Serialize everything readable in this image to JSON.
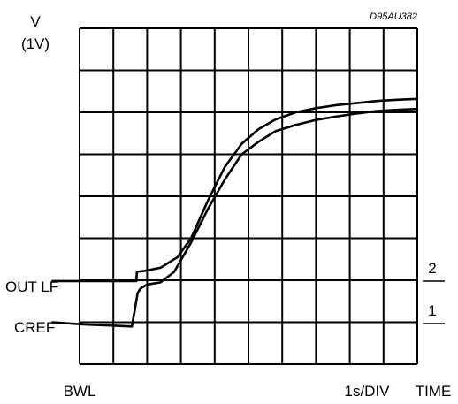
{
  "chart_data": {
    "type": "line",
    "figure_code": "D95AU382",
    "y_axis": {
      "label_line1": "V",
      "label_line2": "(1V)",
      "divisions": 8
    },
    "x_axis": {
      "left_label": "BWL",
      "scale_label": "1s/DIV",
      "label": "TIME",
      "divisions": 10
    },
    "grid": true,
    "left_labels": {
      "out_lf": "OUT LF",
      "cref": "CREF"
    },
    "series": [
      {
        "name": "2",
        "points": [
          [
            -0.8,
            1.98
          ],
          [
            0.1,
            1.98
          ],
          [
            1.68,
            1.98
          ],
          [
            1.7,
            2.2
          ],
          [
            1.9,
            2.22
          ],
          [
            2.4,
            2.3
          ],
          [
            2.9,
            2.55
          ],
          [
            3.3,
            3.0
          ],
          [
            3.8,
            3.9
          ],
          [
            4.3,
            4.7
          ],
          [
            4.8,
            5.25
          ],
          [
            5.3,
            5.6
          ],
          [
            5.8,
            5.83
          ],
          [
            6.4,
            6.0
          ],
          [
            7.0,
            6.1
          ],
          [
            7.6,
            6.17
          ],
          [
            8.2,
            6.22
          ],
          [
            8.8,
            6.27
          ],
          [
            9.4,
            6.3
          ],
          [
            10.0,
            6.32
          ]
        ]
      },
      {
        "name": "1",
        "points": [
          [
            -0.8,
            1.0
          ],
          [
            0.1,
            0.95
          ],
          [
            1.55,
            0.9
          ],
          [
            1.72,
            1.7
          ],
          [
            1.8,
            1.8
          ],
          [
            2.0,
            1.9
          ],
          [
            2.4,
            1.95
          ],
          [
            2.8,
            2.2
          ],
          [
            3.3,
            2.9
          ],
          [
            3.8,
            3.7
          ],
          [
            4.3,
            4.4
          ],
          [
            4.8,
            5.0
          ],
          [
            5.3,
            5.3
          ],
          [
            5.8,
            5.55
          ],
          [
            6.4,
            5.7
          ],
          [
            7.0,
            5.82
          ],
          [
            7.6,
            5.9
          ],
          [
            8.2,
            5.97
          ],
          [
            8.8,
            6.03
          ],
          [
            9.4,
            6.06
          ],
          [
            10.0,
            6.08
          ]
        ]
      }
    ]
  }
}
